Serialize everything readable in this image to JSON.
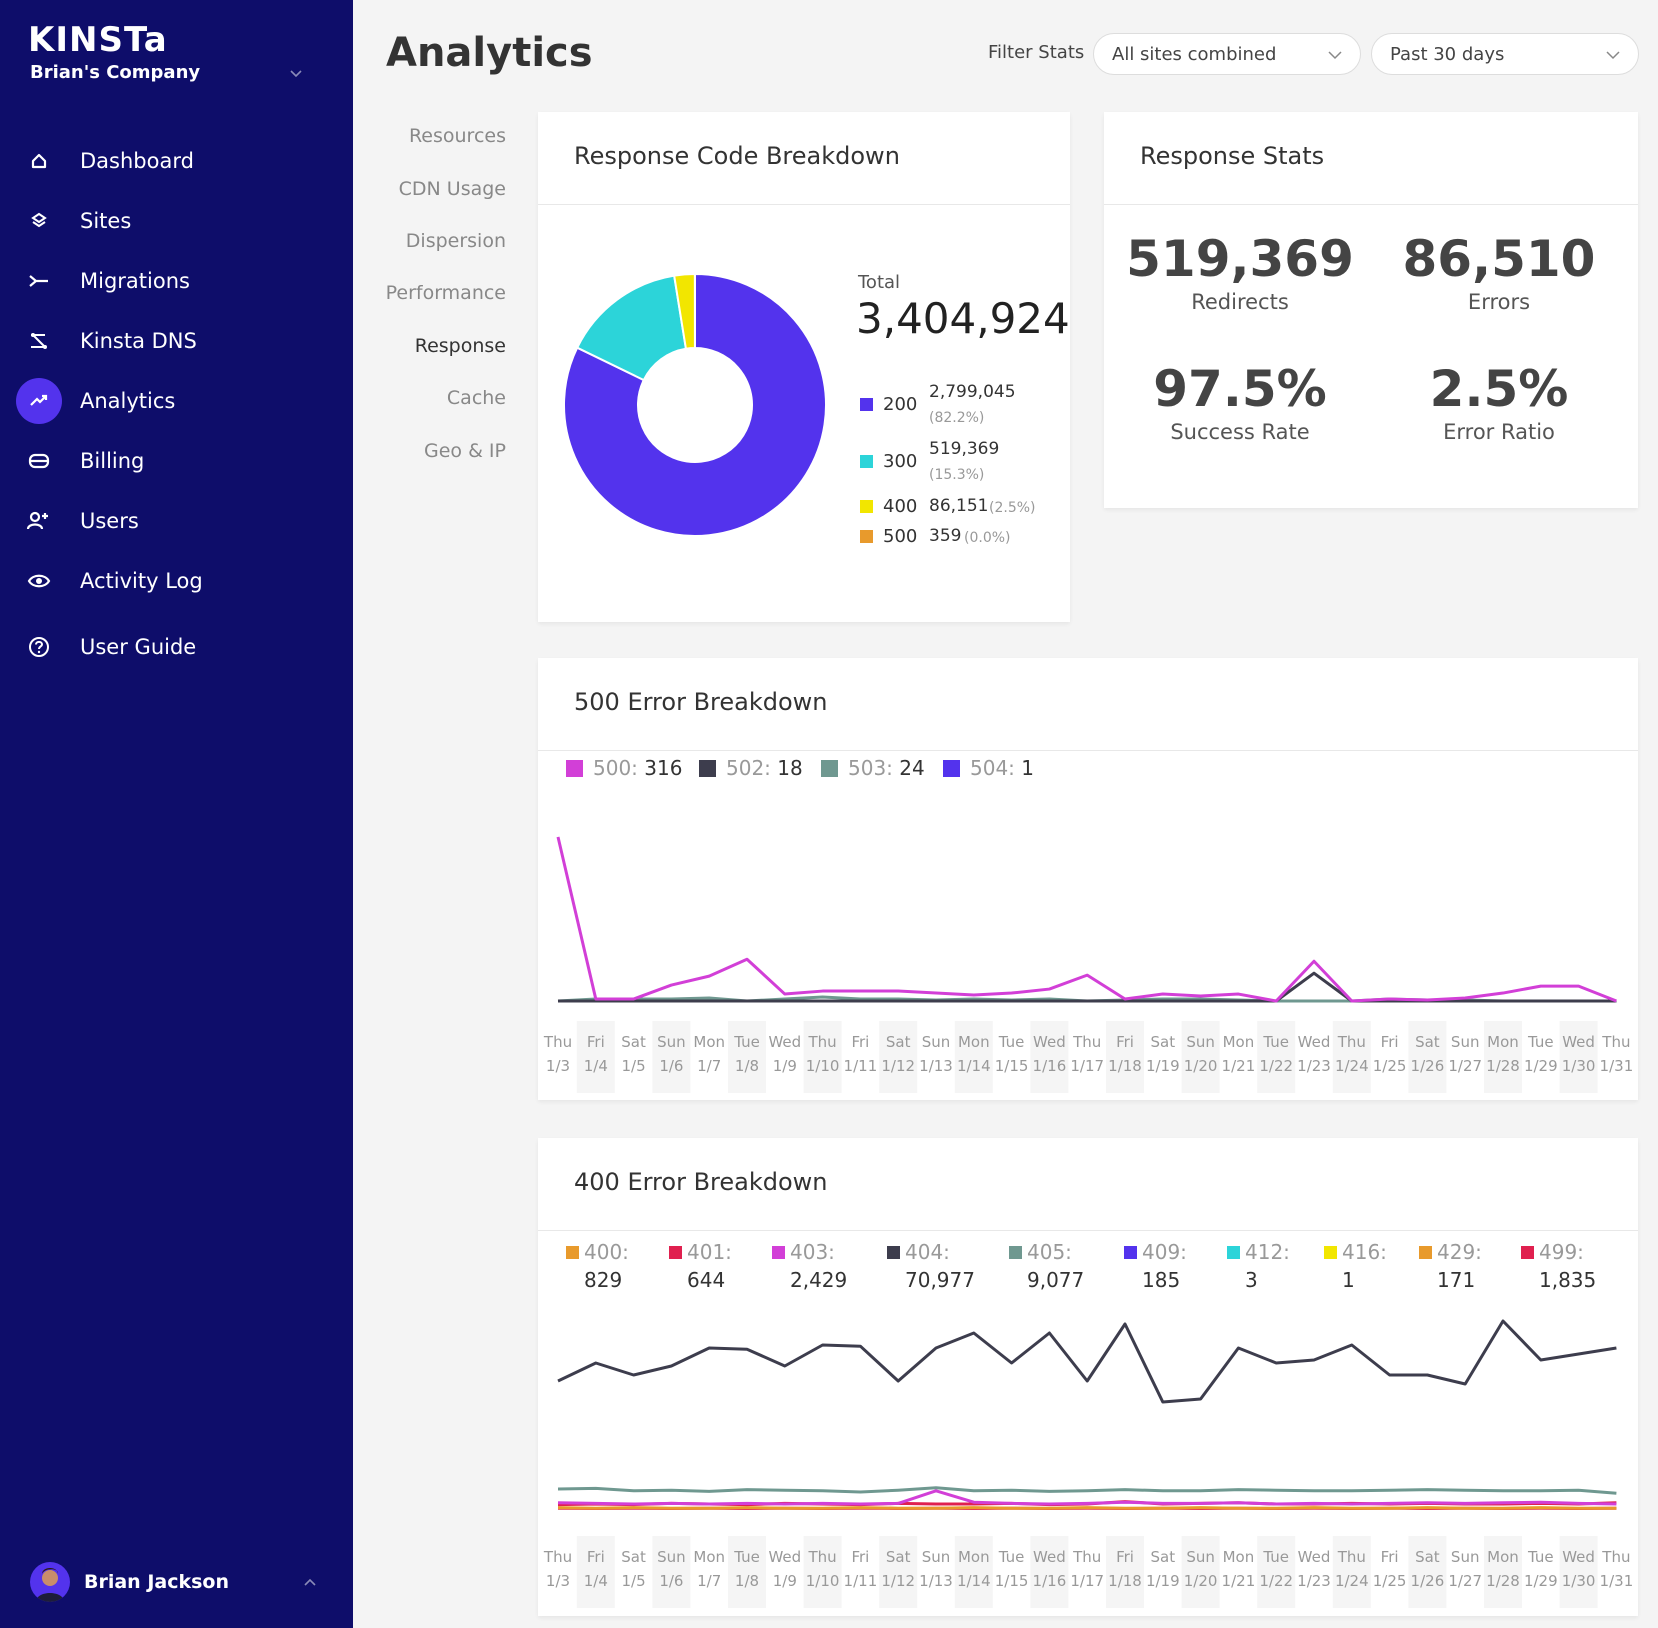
{
  "brand": {
    "logo": "KINSTa",
    "company": "Brian's Company"
  },
  "sidebar": {
    "items": [
      {
        "label": "Dashboard",
        "icon": "home-icon"
      },
      {
        "label": "Sites",
        "icon": "layers-icon"
      },
      {
        "label": "Migrations",
        "icon": "migrations-icon"
      },
      {
        "label": "Kinsta DNS",
        "icon": "dns-icon"
      },
      {
        "label": "Analytics",
        "icon": "analytics-icon",
        "active": true
      },
      {
        "label": "Billing",
        "icon": "billing-icon"
      },
      {
        "label": "Users",
        "icon": "add-user-icon"
      },
      {
        "label": "Activity Log",
        "icon": "eye-icon"
      },
      {
        "label": "User Guide",
        "icon": "help-icon"
      }
    ],
    "user": "Brian Jackson"
  },
  "header": {
    "title": "Analytics",
    "filter_label": "Filter Stats",
    "site_select": "All sites combined",
    "period_select": "Past 30 days"
  },
  "subnav": [
    "Resources",
    "CDN Usage",
    "Dispersion",
    "Performance",
    "Response",
    "Cache",
    "Geo & IP"
  ],
  "response_code": {
    "title": "Response Code Breakdown",
    "total_label": "Total",
    "total": "3,404,924",
    "rows": [
      {
        "code": "200",
        "value": "2,799,045",
        "pct": "(82.2%)",
        "color": "#5333ed"
      },
      {
        "code": "300",
        "value": "519,369",
        "pct": "(15.3%)",
        "color": "#2cd4d9"
      },
      {
        "code": "400",
        "value": "86,151",
        "pct": "(2.5%)",
        "color": "#f2e600"
      },
      {
        "code": "500",
        "value": "359",
        "pct": "(0.0%)",
        "color": "#e89a2c"
      }
    ]
  },
  "response_stats": {
    "title": "Response Stats",
    "redirects": "519,369",
    "redirects_label": "Redirects",
    "errors": "86,510",
    "errors_label": "Errors",
    "success": "97.5%",
    "success_label": "Success Rate",
    "ratio": "2.5%",
    "ratio_label": "Error Ratio"
  },
  "days": [
    "Thu",
    "Fri",
    "Sat",
    "Sun",
    "Mon",
    "Tue",
    "Wed",
    "Thu",
    "Fri",
    "Sat",
    "Sun",
    "Mon",
    "Tue",
    "Wed",
    "Thu",
    "Fri",
    "Sat",
    "Sun",
    "Mon",
    "Tue",
    "Wed",
    "Thu",
    "Fri",
    "Sat",
    "Sun",
    "Mon",
    "Tue",
    "Wed",
    "Thu"
  ],
  "dates": [
    "1/3",
    "1/4",
    "1/5",
    "1/6",
    "1/7",
    "1/8",
    "1/9",
    "1/10",
    "1/11",
    "1/12",
    "1/13",
    "1/14",
    "1/15",
    "1/16",
    "1/17",
    "1/18",
    "1/19",
    "1/20",
    "1/21",
    "1/22",
    "1/23",
    "1/24",
    "1/25",
    "1/26",
    "1/27",
    "1/28",
    "1/29",
    "1/30",
    "1/31"
  ],
  "error500": {
    "title": "500 Error Breakdown",
    "legend": [
      {
        "code": "500:",
        "value": "316",
        "color": "#d23fd7"
      },
      {
        "code": "502:",
        "value": "18",
        "color": "#3d3d4d"
      },
      {
        "code": "503:",
        "value": "24",
        "color": "#6f9890"
      },
      {
        "code": "504:",
        "value": "1",
        "color": "#5333ed"
      }
    ]
  },
  "error400": {
    "title": "400 Error Breakdown",
    "legend": [
      {
        "code": "400:",
        "value": "829",
        "color": "#e89a2c"
      },
      {
        "code": "401:",
        "value": "644",
        "color": "#e0204f"
      },
      {
        "code": "403:",
        "value": "2,429",
        "color": "#d23fd7"
      },
      {
        "code": "404:",
        "value": "70,977",
        "color": "#3d3d4d"
      },
      {
        "code": "405:",
        "value": "9,077",
        "color": "#6f9890"
      },
      {
        "code": "409:",
        "value": "185",
        "color": "#5333ed"
      },
      {
        "code": "412:",
        "value": "3",
        "color": "#2cd4d9"
      },
      {
        "code": "416:",
        "value": "1",
        "color": "#f2e600"
      },
      {
        "code": "429:",
        "value": "171",
        "color": "#e89a2c"
      },
      {
        "code": "499:",
        "value": "1,835",
        "color": "#e0204f"
      }
    ]
  },
  "chart_data": [
    {
      "type": "pie",
      "title": "Response Code Breakdown",
      "categories": [
        "200",
        "300",
        "400",
        "500"
      ],
      "values": [
        2799045,
        519369,
        86151,
        359
      ]
    },
    {
      "type": "line",
      "title": "500 Error Breakdown",
      "x": [
        "1/3",
        "1/4",
        "1/5",
        "1/6",
        "1/7",
        "1/8",
        "1/9",
        "1/10",
        "1/11",
        "1/12",
        "1/13",
        "1/14",
        "1/15",
        "1/16",
        "1/17",
        "1/18",
        "1/19",
        "1/20",
        "1/21",
        "1/22",
        "1/23",
        "1/24",
        "1/25",
        "1/26",
        "1/27",
        "1/28",
        "1/29",
        "1/30",
        "1/31"
      ],
      "ylim": [
        0,
        170
      ],
      "series": [
        {
          "name": "500",
          "color": "#d23fd7",
          "values": [
            165,
            2,
            2,
            16,
            25,
            42,
            7,
            10,
            10,
            10,
            8,
            6,
            8,
            12,
            26,
            2,
            7,
            5,
            7,
            0,
            40,
            0,
            2,
            1,
            3,
            8,
            15,
            15,
            0
          ]
        },
        {
          "name": "502",
          "color": "#3d3d4d",
          "values": [
            0,
            0,
            0,
            0,
            0,
            0,
            0,
            0,
            0,
            0,
            0,
            0,
            0,
            0,
            0,
            0,
            0,
            0,
            0,
            0,
            28,
            0,
            0,
            0,
            0,
            0,
            0,
            0,
            0
          ]
        },
        {
          "name": "503",
          "color": "#6f9890",
          "values": [
            0,
            2,
            2,
            2,
            3,
            0,
            2,
            4,
            2,
            2,
            1,
            2,
            1,
            2,
            0,
            1,
            2,
            2,
            1,
            0,
            0,
            0,
            2,
            1,
            1,
            0,
            0,
            0,
            0
          ]
        },
        {
          "name": "504",
          "color": "#5333ed",
          "values": [
            0,
            0,
            0,
            0,
            0,
            0,
            0,
            0,
            0,
            0,
            0,
            0,
            0,
            0,
            0,
            0,
            0,
            0,
            0,
            0,
            0,
            0,
            0,
            0,
            0,
            0,
            0,
            0,
            0
          ]
        }
      ]
    },
    {
      "type": "line",
      "title": "400 Error Breakdown",
      "x": [
        "1/3",
        "1/4",
        "1/5",
        "1/6",
        "1/7",
        "1/8",
        "1/9",
        "1/10",
        "1/11",
        "1/12",
        "1/13",
        "1/14",
        "1/15",
        "1/16",
        "1/17",
        "1/18",
        "1/19",
        "1/20",
        "1/21",
        "1/22",
        "1/23",
        "1/24",
        "1/25",
        "1/26",
        "1/27",
        "1/28",
        "1/29",
        "1/30",
        "1/31"
      ],
      "ylim": [
        0,
        3500
      ],
      "series": [
        {
          "name": "404",
          "color": "#3d3d4d",
          "values": [
            2150,
            2450,
            2250,
            2400,
            2700,
            2680,
            2400,
            2750,
            2730,
            2150,
            2700,
            2950,
            2450,
            2950,
            2150,
            3100,
            1800,
            1850,
            2700,
            2450,
            2500,
            2750,
            2250,
            2250,
            2100,
            3150,
            2500,
            2600,
            2700
          ]
        },
        {
          "name": "405",
          "color": "#6f9890",
          "values": [
            350,
            360,
            320,
            330,
            310,
            340,
            330,
            320,
            300,
            330,
            370,
            320,
            330,
            310,
            320,
            340,
            320,
            320,
            340,
            330,
            320,
            320,
            330,
            340,
            330,
            320,
            320,
            330,
            280
          ]
        },
        {
          "name": "403",
          "color": "#d23fd7",
          "values": [
            120,
            110,
            100,
            110,
            100,
            110,
            100,
            110,
            100,
            110,
            320,
            130,
            110,
            100,
            110,
            130,
            110,
            110,
            120,
            100,
            110,
            100,
            110,
            120,
            110,
            120,
            130,
            110,
            100
          ]
        },
        {
          "name": "499",
          "color": "#e0204f",
          "values": [
            90,
            100,
            90,
            110,
            100,
            90,
            110,
            100,
            90,
            110,
            100,
            100,
            110,
            90,
            100,
            140,
            100,
            110,
            120,
            100,
            100,
            110,
            100,
            110,
            100,
            100,
            110,
            100,
            120
          ]
        },
        {
          "name": "400",
          "color": "#e89a2c",
          "values": [
            40,
            30,
            40,
            30,
            30,
            40,
            30,
            30,
            40,
            30,
            30,
            40,
            30,
            30,
            40,
            30,
            30,
            40,
            30,
            30,
            40,
            30,
            30,
            40,
            30,
            30,
            40,
            30,
            30
          ]
        },
        {
          "name": "401",
          "color": "#e0204f",
          "values": [
            30,
            25,
            30,
            25,
            30,
            25,
            30,
            25,
            30,
            25,
            30,
            25,
            30,
            25,
            30,
            25,
            30,
            25,
            30,
            25,
            30,
            25,
            30,
            25,
            30,
            25,
            30,
            25,
            30
          ]
        }
      ]
    }
  ]
}
